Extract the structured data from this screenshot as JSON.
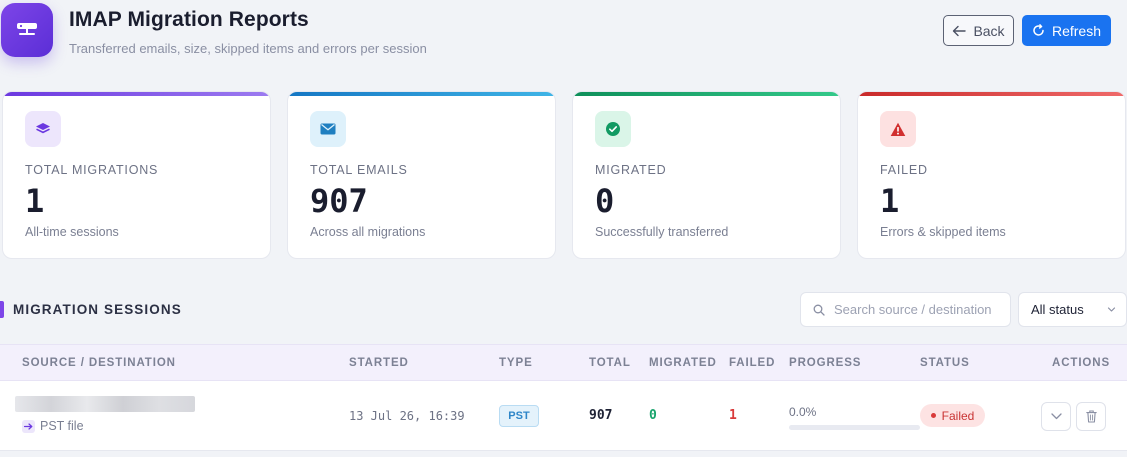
{
  "header": {
    "title": "IMAP Migration Reports",
    "subtitle": "Transferred emails, size, skipped items and errors per session",
    "logo_icon": "server-icon",
    "back_label": "Back",
    "refresh_label": "Refresh"
  },
  "stats": [
    {
      "label": "TOTAL MIGRATIONS",
      "value": "1",
      "note": "All-time sessions",
      "icon": "layers-icon",
      "accent": "#7d45e8"
    },
    {
      "label": "TOTAL EMAILS",
      "value": "907",
      "note": "Across all migrations",
      "icon": "envelope-icon",
      "accent": "#1f8fd6"
    },
    {
      "label": "MIGRATED",
      "value": "0",
      "note": "Successfully transferred",
      "icon": "check-circle-icon",
      "accent": "#17a36b"
    },
    {
      "label": "FAILED",
      "value": "1",
      "note": "Errors & skipped items",
      "icon": "warning-icon",
      "accent": "#d93a3a"
    }
  ],
  "sessions": {
    "title": "MIGRATION SESSIONS",
    "search_placeholder": "Search source / destination",
    "status_filter": "All status",
    "columns": [
      "SOURCE / DESTINATION",
      "STARTED",
      "TYPE",
      "TOTAL",
      "MIGRATED",
      "FAILED",
      "PROGRESS",
      "STATUS",
      "ACTIONS"
    ],
    "rows": [
      {
        "source_sub": "PST file",
        "started": "13 Jul 26, 16:39",
        "type": "PST",
        "total": "907",
        "migrated": "0",
        "failed": "1",
        "progress_text": "0.0%",
        "progress": 0.0,
        "status": "Failed"
      }
    ]
  },
  "colors": {
    "primary": "#1a73f0",
    "brand": "#7d45e8",
    "success": "#17a36b",
    "danger": "#d93a3a"
  }
}
